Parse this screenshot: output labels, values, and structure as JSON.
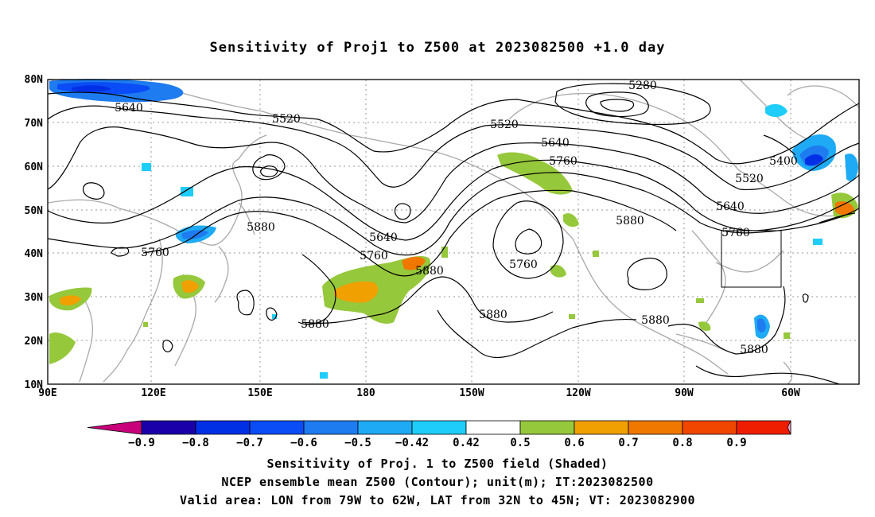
{
  "title": "Sensitivity of Proj1 to Z500 at 2023082500 +1.0 day",
  "map": {
    "lat_labels": [
      "80N",
      "70N",
      "60N",
      "50N",
      "40N",
      "30N",
      "20N",
      "10N"
    ],
    "lon_labels": [
      "90E",
      "120E",
      "150E",
      "180",
      "150W",
      "120W",
      "90W",
      "60W"
    ],
    "contour_labels": [
      {
        "text": "5280"
      },
      {
        "text": "5520"
      },
      {
        "text": "5520"
      },
      {
        "text": "5640"
      },
      {
        "text": "5640"
      },
      {
        "text": "5760"
      },
      {
        "text": "5400"
      },
      {
        "text": "5520"
      },
      {
        "text": "5640"
      },
      {
        "text": "5760"
      },
      {
        "text": "5880"
      },
      {
        "text": "5880"
      },
      {
        "text": "5640"
      },
      {
        "text": "5760"
      },
      {
        "text": "5880"
      },
      {
        "text": "5760"
      },
      {
        "text": "5880"
      },
      {
        "text": "5880"
      },
      {
        "text": "5880"
      },
      {
        "text": "5880"
      }
    ],
    "valid_area": {
      "lon_from": "79W",
      "lon_to": "62W",
      "lat_from": "32N",
      "lat_to": "45N"
    }
  },
  "colorbar": {
    "labels": [
      "-0.9",
      "-0.8",
      "-0.7",
      "-0.6",
      "-0.5",
      "-0.42",
      "0.42",
      "0.5",
      "0.6",
      "0.7",
      "0.8",
      "0.9"
    ],
    "colors": [
      "#c8007a",
      "#1a00a8",
      "#0030e6",
      "#0a4cf5",
      "#1e7cf0",
      "#1eaaf5",
      "#1ecdfa",
      "#ffffff",
      "#96c83c",
      "#f0a000",
      "#f07800",
      "#f04600",
      "#f01e00",
      "#f0a0c8"
    ]
  },
  "captions": [
    "Sensitivity of Proj. 1 to Z500 field (Shaded)",
    "NCEP ensemble mean Z500 (Contour); unit(m); IT:2023082500",
    "Valid area: LON from 79W to 62W, LAT from 32N to 45N; VT: 2023082900"
  ]
}
